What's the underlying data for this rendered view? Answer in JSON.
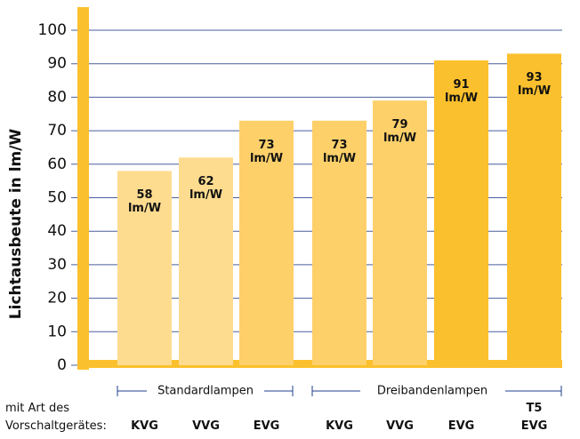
{
  "chart_data": {
    "type": "bar",
    "y_label": "Lichtausbeute in lm/W",
    "x_label": "mit Art des\nVorschaltgerätes:",
    "groups": [
      "Standardlampen",
      "Dreibandenlampen"
    ],
    "categories": [
      "KVG",
      "VVG",
      "EVG",
      "KVG",
      "VVG",
      "EVG",
      "T5\nEVG"
    ],
    "values": [
      58,
      62,
      73,
      73,
      79,
      91,
      93
    ],
    "value_labels": [
      "58\nlm/W",
      "62\nlm/W",
      "73\nlm/W",
      "73\nlm/W",
      "79\nlm/W",
      "91\nlm/W",
      "93\nlm/W"
    ],
    "colors": [
      "#fddc90",
      "#fddc90",
      "#fdd06a",
      "#fdd06a",
      "#fdd06a",
      "#fbc02d",
      "#fbc02d"
    ],
    "ylim": [
      0,
      100
    ],
    "yticks": [
      0,
      10,
      20,
      30,
      40,
      50,
      60,
      70,
      80,
      90,
      100
    ],
    "grid": true
  }
}
